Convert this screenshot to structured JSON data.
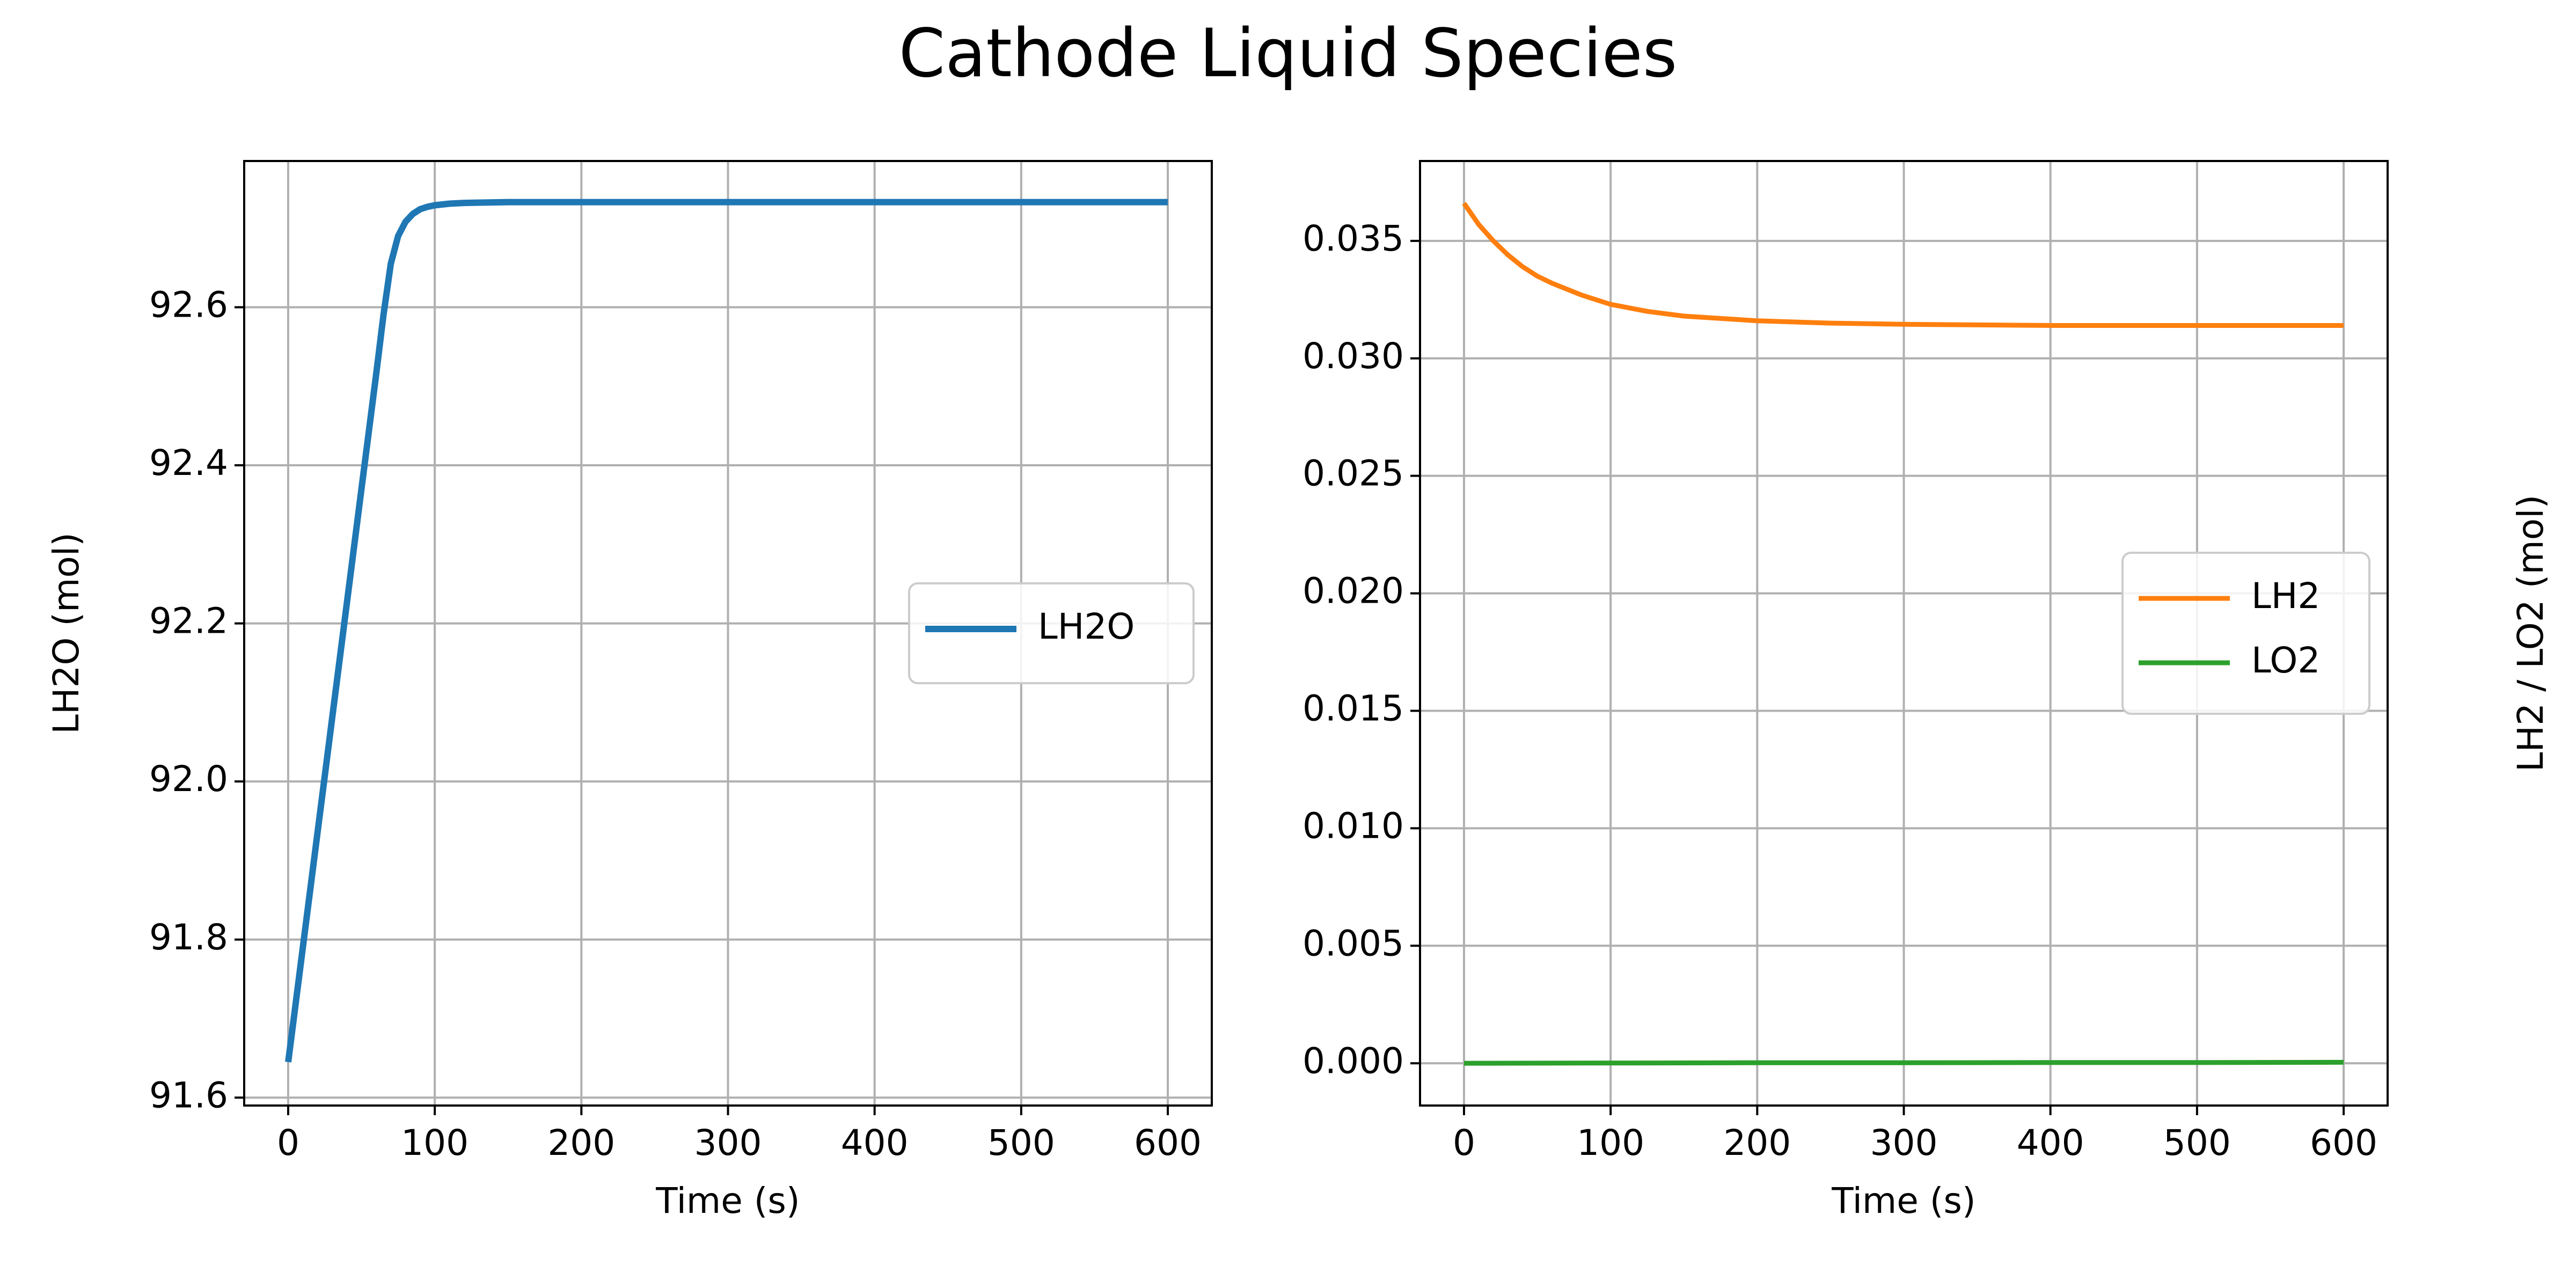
{
  "figure": {
    "title": "Cathode Liquid Species"
  },
  "chart_data": [
    {
      "type": "line",
      "xlabel": "Time (s)",
      "ylabel": "LH2O (mol)",
      "xlim": [
        -30,
        630
      ],
      "ylim": [
        91.59,
        92.785
      ],
      "xticks": [
        0,
        100,
        200,
        300,
        400,
        500,
        600
      ],
      "yticks": [
        91.6,
        91.8,
        92.0,
        92.2,
        92.4,
        92.6
      ],
      "ytick_labels": [
        "91.6",
        "91.8",
        "92.0",
        "92.2",
        "92.4",
        "92.6"
      ],
      "grid": true,
      "legend": "center-right",
      "series": [
        {
          "name": "LH2O",
          "color": "#1f77b4",
          "x": [
            0,
            10,
            20,
            30,
            40,
            50,
            60,
            65,
            70,
            75,
            80,
            85,
            90,
            95,
            100,
            110,
            120,
            150,
            200,
            300,
            400,
            500,
            600
          ],
          "y": [
            91.645,
            91.79,
            91.935,
            92.08,
            92.225,
            92.37,
            92.515,
            92.59,
            92.655,
            92.69,
            92.708,
            92.718,
            92.724,
            92.727,
            92.729,
            92.731,
            92.732,
            92.733,
            92.733,
            92.733,
            92.733,
            92.733,
            92.733
          ]
        }
      ]
    },
    {
      "type": "line",
      "xlabel": "Time (s)",
      "ylabel": "LH2 / LO2 (mol)",
      "xlim": [
        -30,
        630
      ],
      "ylim": [
        -0.0018,
        0.0384
      ],
      "xticks": [
        0,
        100,
        200,
        300,
        400,
        500,
        600
      ],
      "yticks": [
        0.0,
        0.005,
        0.01,
        0.015,
        0.02,
        0.025,
        0.03,
        0.035
      ],
      "ytick_labels": [
        "0.000",
        "0.005",
        "0.010",
        "0.015",
        "0.020",
        "0.025",
        "0.030",
        "0.035"
      ],
      "grid": true,
      "legend": "center-right",
      "series": [
        {
          "name": "LH2",
          "color": "#ff7f0e",
          "x": [
            0,
            10,
            20,
            30,
            40,
            50,
            60,
            80,
            100,
            125,
            150,
            200,
            250,
            300,
            400,
            500,
            600
          ],
          "y": [
            0.0366,
            0.0357,
            0.035,
            0.0344,
            0.0339,
            0.0335,
            0.0332,
            0.0327,
            0.0323,
            0.032,
            0.0318,
            0.0316,
            0.0315,
            0.03145,
            0.0314,
            0.0314,
            0.0314
          ]
        },
        {
          "name": "LO2",
          "color": "#2ca02c",
          "x": [
            0,
            100,
            200,
            300,
            400,
            500,
            600
          ],
          "y": [
            0.0,
            1e-05,
            2e-05,
            2e-05,
            3e-05,
            3e-05,
            4e-05
          ]
        }
      ]
    }
  ]
}
